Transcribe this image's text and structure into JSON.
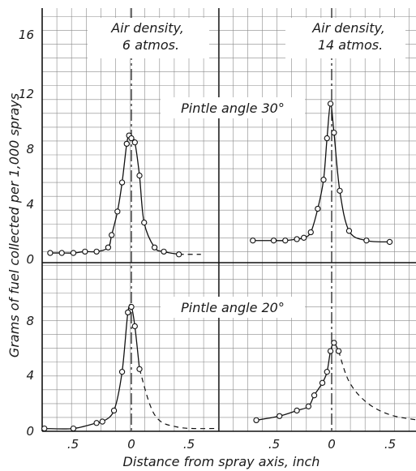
{
  "chart_data": [
    {
      "type": "line",
      "panel": "top-left",
      "annotation_lines": [
        "Air density,",
        "6 atmos."
      ],
      "xlim": [
        -0.75,
        0.75
      ],
      "ylim": [
        0,
        17
      ],
      "points": [
        {
          "x": -0.7,
          "y": 0.7
        },
        {
          "x": -0.6,
          "y": 0.7
        },
        {
          "x": -0.5,
          "y": 0.7
        },
        {
          "x": -0.4,
          "y": 0.8
        },
        {
          "x": -0.3,
          "y": 0.8
        },
        {
          "x": -0.2,
          "y": 1.1
        },
        {
          "x": -0.17,
          "y": 2.0
        },
        {
          "x": -0.12,
          "y": 3.7
        },
        {
          "x": -0.08,
          "y": 5.8
        },
        {
          "x": -0.04,
          "y": 8.6
        },
        {
          "x": -0.02,
          "y": 9.2
        },
        {
          "x": 0.0,
          "y": 9.0
        },
        {
          "x": 0.03,
          "y": 8.7
        },
        {
          "x": 0.07,
          "y": 6.3
        },
        {
          "x": 0.11,
          "y": 2.9
        },
        {
          "x": 0.2,
          "y": 1.1
        },
        {
          "x": 0.28,
          "y": 0.8
        },
        {
          "x": 0.41,
          "y": 0.6
        }
      ],
      "dashed_extension_to_x": 0.6
    },
    {
      "type": "line",
      "panel": "top-right",
      "annotation_lines": [
        "Air density,",
        "14 atmos."
      ],
      "title": "Pintle angle 30°",
      "xlim": [
        -0.75,
        0.75
      ],
      "ylim": [
        0,
        17
      ],
      "points": [
        {
          "x": -0.68,
          "y": 1.6
        },
        {
          "x": -0.5,
          "y": 1.6
        },
        {
          "x": -0.4,
          "y": 1.6
        },
        {
          "x": -0.3,
          "y": 1.7
        },
        {
          "x": -0.24,
          "y": 1.8
        },
        {
          "x": -0.18,
          "y": 2.2
        },
        {
          "x": -0.12,
          "y": 3.9
        },
        {
          "x": -0.07,
          "y": 6.0
        },
        {
          "x": -0.04,
          "y": 9.0
        },
        {
          "x": -0.01,
          "y": 11.5
        },
        {
          "x": 0.02,
          "y": 9.4
        },
        {
          "x": 0.07,
          "y": 5.2
        },
        {
          "x": 0.15,
          "y": 2.3
        },
        {
          "x": 0.3,
          "y": 1.6
        },
        {
          "x": 0.5,
          "y": 1.5
        }
      ]
    },
    {
      "type": "line",
      "panel": "bottom-left",
      "title": "Pintle angle 20°",
      "xlim": [
        -0.75,
        0.75
      ],
      "ylim": [
        0,
        10.5
      ],
      "points": [
        {
          "x": -0.75,
          "y": 0.2
        },
        {
          "x": -0.5,
          "y": 0.2
        },
        {
          "x": -0.3,
          "y": 0.6
        },
        {
          "x": -0.25,
          "y": 0.7
        },
        {
          "x": -0.15,
          "y": 1.5
        },
        {
          "x": -0.08,
          "y": 4.3
        },
        {
          "x": -0.03,
          "y": 8.6
        },
        {
          "x": 0.0,
          "y": 9.0
        },
        {
          "x": 0.03,
          "y": 7.6
        },
        {
          "x": 0.07,
          "y": 4.5
        }
      ],
      "dashed_extension": [
        {
          "x": 0.2,
          "y": 1.2
        },
        {
          "x": 0.4,
          "y": 0.3
        },
        {
          "x": 0.75,
          "y": 0.2
        }
      ]
    },
    {
      "type": "line",
      "panel": "bottom-right",
      "xlim": [
        -0.75,
        0.75
      ],
      "ylim": [
        0,
        10.5
      ],
      "points": [
        {
          "x": -0.65,
          "y": 0.8
        },
        {
          "x": -0.45,
          "y": 1.1
        },
        {
          "x": -0.3,
          "y": 1.5
        },
        {
          "x": -0.2,
          "y": 1.8
        },
        {
          "x": -0.15,
          "y": 2.6
        },
        {
          "x": -0.08,
          "y": 3.5
        },
        {
          "x": -0.04,
          "y": 4.3
        },
        {
          "x": -0.01,
          "y": 5.8
        },
        {
          "x": 0.02,
          "y": 6.4
        },
        {
          "x": 0.06,
          "y": 5.8
        }
      ],
      "dashed_extension": [
        {
          "x": 0.15,
          "y": 3.6
        },
        {
          "x": 0.3,
          "y": 2.1
        },
        {
          "x": 0.5,
          "y": 1.2
        },
        {
          "x": 0.75,
          "y": 0.8
        }
      ]
    }
  ],
  "ylabel": "Grams of fuel collected per 1,000 sprays",
  "xlabel": "Distance from spray axis, inch",
  "top_yticks": [
    "16",
    "12",
    "8",
    "4",
    "0"
  ],
  "bottom_yticks": [
    "8",
    "4",
    "0"
  ],
  "xtick_labels": [
    ".5",
    "0",
    ".5",
    ".5",
    "0",
    ".5"
  ],
  "colors": {
    "grid": "#8a8a8a",
    "ink": "#111111",
    "marker_fill": "#ffffff"
  }
}
